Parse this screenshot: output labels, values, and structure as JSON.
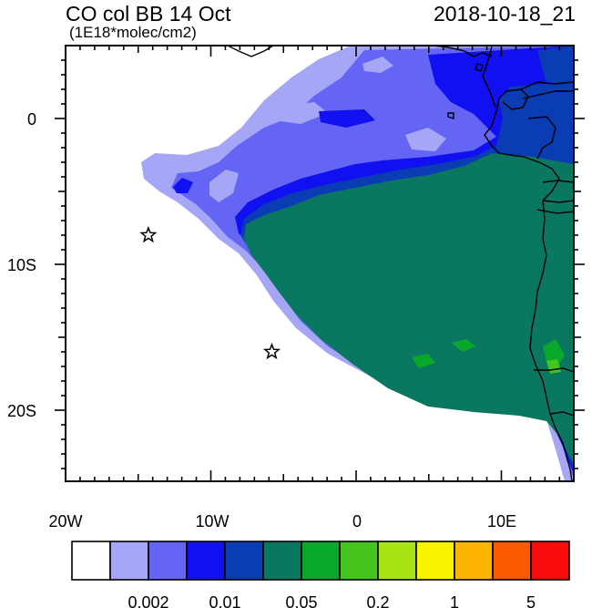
{
  "header": {
    "title": "CO col BB 14 Oct",
    "units": "(1E18*molec/cm2)",
    "timestamp": "2018-10-18_21"
  },
  "axes": {
    "x_ticks": [
      "20W",
      "10W",
      "0",
      "10E"
    ],
    "y_ticks": [
      "0",
      "10S",
      "20S"
    ]
  },
  "colorbar": {
    "colors": [
      "#ffffff",
      "#a6a6f7",
      "#6464f5",
      "#1010f0",
      "#0a3cb4",
      "#0a7860",
      "#0aa82a",
      "#44c41c",
      "#a8e414",
      "#f8f400",
      "#fcb400",
      "#fc5a00",
      "#f80c0c"
    ],
    "labels": [
      "0.002",
      "0.01",
      "0.05",
      "0.2",
      "1",
      "5"
    ]
  },
  "markers": [
    {
      "name": "star-marker-1",
      "lon": -14.3,
      "lat": -8.0
    },
    {
      "name": "star-marker-2",
      "lon": -5.8,
      "lat": -16.0
    }
  ]
}
